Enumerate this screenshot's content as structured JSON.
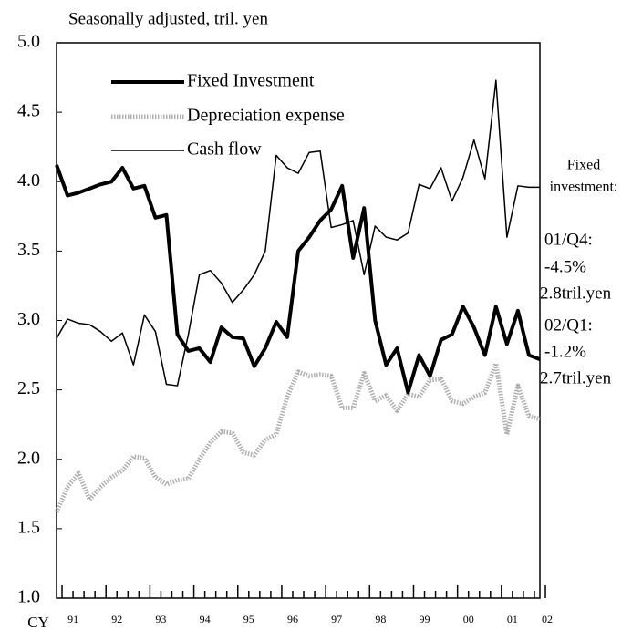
{
  "chart_data": {
    "type": "line",
    "subtitle": "Seasonally adjusted, tril. yen",
    "x_labels": [
      "CY",
      "91",
      "92",
      "93",
      "94",
      "95",
      "96",
      "97",
      "98",
      "99",
      "00",
      "01",
      "02"
    ],
    "series": [
      {
        "name": "Fixed Investment",
        "color": "#000000",
        "style": "thick",
        "values": [
          4.12,
          3.9,
          3.92,
          3.95,
          3.98,
          4.0,
          4.1,
          3.95,
          3.97,
          3.74,
          3.76,
          2.9,
          2.78,
          2.8,
          2.7,
          2.95,
          2.88,
          2.87,
          2.67,
          2.8,
          2.99,
          2.88,
          3.5,
          3.6,
          3.72,
          3.8,
          3.97,
          3.45,
          3.81,
          3.0,
          2.68,
          2.8,
          2.48,
          2.75,
          2.6,
          2.86,
          2.9,
          3.1,
          2.95,
          2.75,
          3.1,
          2.83,
          3.07,
          2.75,
          2.72
        ]
      },
      {
        "name": "Depreciation expense",
        "color": "#b0b0b0",
        "style": "hatched",
        "values": [
          1.62,
          1.8,
          1.9,
          1.71,
          1.8,
          1.87,
          1.92,
          2.02,
          2.01,
          1.87,
          1.82,
          1.85,
          1.86,
          2.0,
          2.12,
          2.2,
          2.19,
          2.05,
          2.03,
          2.14,
          2.18,
          2.45,
          2.63,
          2.6,
          2.61,
          2.6,
          2.37,
          2.37,
          2.62,
          2.42,
          2.46,
          2.35,
          2.47,
          2.45,
          2.57,
          2.58,
          2.42,
          2.4,
          2.45,
          2.48,
          2.69,
          2.18,
          2.53,
          2.31,
          2.29
        ]
      },
      {
        "name": "Cash flow",
        "color": "#000000",
        "style": "thin",
        "values": [
          2.87,
          3.01,
          2.98,
          2.97,
          2.92,
          2.85,
          2.91,
          2.68,
          3.04,
          2.92,
          2.54,
          2.53,
          2.9,
          3.33,
          3.36,
          3.27,
          3.13,
          3.22,
          3.33,
          3.5,
          4.19,
          4.1,
          4.06,
          4.21,
          4.22,
          3.67,
          3.69,
          3.72,
          3.33,
          3.68,
          3.6,
          3.58,
          3.63,
          3.98,
          3.95,
          4.1,
          3.86,
          4.03,
          4.3,
          4.02,
          4.73,
          3.6,
          3.97,
          3.96,
          3.96
        ]
      }
    ],
    "ylim": [
      1.0,
      5.0
    ],
    "yticks": [
      {
        "value": 1.0,
        "label": "1.0"
      },
      1.5,
      {
        "value": 2.0,
        "label": "2.0"
      },
      2.5,
      {
        "value": 3.0,
        "label": "3.0"
      },
      3.5,
      {
        "value": 4.0,
        "label": "4.0"
      },
      4.5,
      {
        "value": 5.0,
        "label": "5.0"
      }
    ],
    "annotations": [
      "Fixed",
      "investment:",
      "01/Q4:",
      "-4.5%",
      "2.8tril.yen",
      "02/Q1:",
      "-1.2%",
      "2.7tril.yen"
    ]
  }
}
